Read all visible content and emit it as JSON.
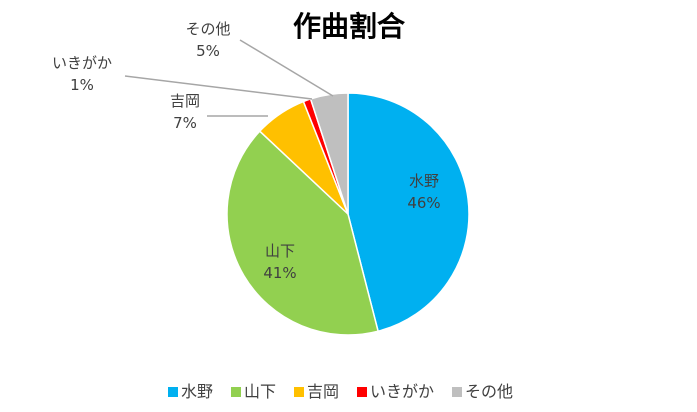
{
  "chart_data": {
    "type": "pie",
    "title": "作曲割合",
    "series": [
      {
        "name": "水野",
        "value": 46,
        "label": "46%",
        "color": "#00B0F0"
      },
      {
        "name": "山下",
        "value": 41,
        "label": "41%",
        "color": "#92D050"
      },
      {
        "name": "吉岡",
        "value": 7,
        "label": "7%",
        "color": "#FFC000"
      },
      {
        "name": "いきがか",
        "value": 1,
        "label": "1%",
        "color": "#FF0000"
      },
      {
        "name": "その他",
        "value": 5,
        "label": "5%",
        "color": "#BFBFBF"
      }
    ],
    "legend_position": "bottom",
    "leader_color": "#A6A6A6"
  }
}
